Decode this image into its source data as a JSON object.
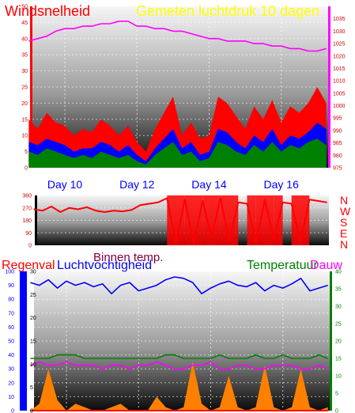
{
  "labels": {
    "wind_title": "Windsnelheid",
    "pressure_title": "Gemeten luchtdruk 10 dagen",
    "direction_letters": [
      "N",
      "W",
      "S",
      "E",
      "N"
    ],
    "rain_title": "Regenval",
    "humidity_title": "Luchtvochtigheid",
    "inside_temp_title": "Binnen temp.",
    "temperature_title": "Temperatuur",
    "dew_title": "Dauw",
    "day_labels": [
      "Day 10",
      "Day 12",
      "Day 14",
      "Day 16"
    ]
  },
  "colors": {
    "wind_gust": "#ff0000",
    "wind_avg": "#0000ff",
    "wind_low": "#008000",
    "pressure": "#ff00ff",
    "direction": "#ff0000",
    "rain": "#ff0000",
    "rain_axis": "#0000ff",
    "humidity": "#0000ff",
    "inside_temp": "#800040",
    "temperature": "#008000",
    "dew": "#ff00ff",
    "solar": "#ff8000",
    "axis_text": "#cc0000",
    "day_label": "#0000ff"
  },
  "chart_data": [
    {
      "type": "line",
      "title": "Windsnelheid / Gemeten luchtdruk 10 dagen",
      "x": [
        9,
        9.25,
        9.5,
        9.75,
        10,
        10.25,
        10.5,
        10.75,
        11,
        11.25,
        11.5,
        11.75,
        12,
        12.25,
        12.5,
        12.75,
        13,
        13.25,
        13.5,
        13.75,
        14,
        14.25,
        14.5,
        14.75,
        15,
        15.25,
        15.5,
        15.75,
        16,
        16.25,
        16.5,
        16.75,
        17,
        17.25
      ],
      "xticks": [
        10,
        12,
        14,
        16
      ],
      "xlim": [
        9.1,
        17.3
      ],
      "y_left_lim": [
        0,
        50
      ],
      "y_left_ticks": [
        0,
        5,
        10,
        15,
        20,
        25,
        30,
        35,
        40,
        45,
        50
      ],
      "y_right_lim": [
        975,
        1040
      ],
      "y_right_ticks": [
        975,
        980,
        985,
        990,
        995,
        1000,
        1005,
        1010,
        1015,
        1020,
        1025,
        1030,
        1035
      ],
      "series": [
        {
          "axis": "left",
          "values": [
            15,
            12,
            17,
            14,
            13,
            10,
            12,
            11,
            15,
            13,
            10,
            13,
            8,
            5,
            12,
            17,
            22,
            10,
            14,
            9,
            10,
            22,
            20,
            16,
            12,
            19,
            15,
            21,
            14,
            19,
            17,
            20,
            25,
            20
          ]
        },
        {
          "axis": "left",
          "values": [
            8,
            7,
            9,
            8,
            7,
            5,
            6,
            6,
            8,
            7,
            5,
            7,
            4,
            2,
            6,
            9,
            12,
            6,
            8,
            4,
            5,
            12,
            11,
            8,
            6,
            10,
            8,
            12,
            7,
            10,
            9,
            11,
            14,
            12
          ]
        },
        {
          "axis": "left",
          "values": [
            5,
            4,
            6,
            5,
            4,
            3,
            4,
            3,
            5,
            4,
            3,
            4,
            2,
            1,
            4,
            6,
            8,
            4,
            5,
            2,
            3,
            8,
            7,
            5,
            4,
            7,
            5,
            8,
            5,
            7,
            6,
            8,
            9,
            7
          ]
        },
        {
          "axis": "right",
          "values": [
            1026,
            1027,
            1028,
            1030,
            1031,
            1031,
            1032,
            1032,
            1033,
            1033,
            1034,
            1034,
            1032,
            1032,
            1031,
            1031,
            1030,
            1030,
            1029,
            1028,
            1027,
            1027,
            1026,
            1026,
            1026,
            1025,
            1025,
            1024,
            1024,
            1023,
            1023,
            1022,
            1022,
            1023
          ]
        }
      ]
    },
    {
      "type": "line",
      "title": "N W S E N",
      "x": [
        9,
        9.25,
        9.5,
        9.75,
        10,
        10.25,
        10.5,
        10.75,
        11,
        11.25,
        11.5,
        11.75,
        12,
        12.25,
        12.5,
        12.75,
        13,
        13.25,
        13.5,
        13.75,
        14,
        14.25,
        14.5,
        14.75,
        15,
        15.25,
        15.5,
        15.75,
        16,
        16.25,
        16.5,
        16.75,
        17,
        17.25
      ],
      "xlim": [
        9.1,
        17.3
      ],
      "ylim": [
        0,
        360
      ],
      "yticks": [
        0,
        90,
        180,
        270,
        360
      ],
      "series": [
        {
          "values": [
            260,
            250,
            280,
            240,
            270,
            260,
            275,
            250,
            240,
            250,
            245,
            255,
            290,
            300,
            310,
            340,
            20,
            330,
            10,
            320,
            60,
            340,
            30,
            310,
            300,
            20,
            330,
            40,
            310,
            300,
            20,
            330,
            320,
            310
          ]
        }
      ]
    },
    {
      "type": "line",
      "title": "Regenval / Luchtvochtigheid / Binnen temp. / Temperatuur / Dauw",
      "x": [
        9,
        9.25,
        9.5,
        9.75,
        10,
        10.25,
        10.5,
        10.75,
        11,
        11.25,
        11.5,
        11.75,
        12,
        12.25,
        12.5,
        12.75,
        13,
        13.25,
        13.5,
        13.75,
        14,
        14.25,
        14.5,
        14.75,
        15,
        15.25,
        15.5,
        15.75,
        16,
        16.25,
        16.5,
        16.75,
        17,
        17.25
      ],
      "xlim": [
        9.1,
        17.3
      ],
      "y_pct_lim": [
        0,
        100
      ],
      "y_pct_ticks": [
        0,
        10,
        20,
        30,
        40,
        50,
        60,
        70,
        80,
        90,
        100
      ],
      "y_rain_lim": [
        0,
        30
      ],
      "y_rain_ticks": [
        0,
        5,
        10,
        15,
        20,
        25,
        30
      ],
      "y_temp_lim": [
        0,
        40
      ],
      "y_temp_ticks": [
        0,
        5,
        10,
        15,
        20,
        25,
        30,
        35,
        40
      ],
      "series": [
        {
          "axis": "pct",
          "values": [
            92,
            90,
            94,
            88,
            93,
            90,
            92,
            89,
            91,
            84,
            90,
            92,
            86,
            88,
            90,
            94,
            96,
            95,
            92,
            84,
            88,
            91,
            93,
            90,
            89,
            92,
            86,
            90,
            88,
            91,
            95,
            86,
            88,
            90
          ]
        },
        {
          "axis": "temp",
          "values": [
            15,
            15,
            15,
            16,
            16,
            16,
            15,
            15,
            15,
            15,
            15,
            15,
            15,
            15,
            15,
            16,
            16,
            15,
            15,
            15,
            15,
            16,
            15,
            15,
            15,
            16,
            15,
            15,
            16,
            15,
            15,
            15,
            16,
            15
          ]
        },
        {
          "axis": "temp",
          "values": [
            13,
            14,
            13,
            13,
            14,
            13,
            13,
            13,
            12,
            13,
            13,
            12,
            13,
            13,
            14,
            13,
            12,
            12,
            13,
            13,
            14,
            12,
            12,
            13,
            13,
            12,
            12,
            13,
            13,
            13,
            12,
            12,
            13,
            12
          ]
        },
        {
          "axis": "temp",
          "values": [
            0,
            2,
            12,
            3,
            0,
            2,
            1,
            0,
            0,
            1,
            2,
            0,
            0,
            0,
            4,
            1,
            0,
            1,
            14,
            2,
            0,
            1,
            10,
            1,
            0,
            1,
            13,
            1,
            0,
            1,
            12,
            1,
            0,
            1
          ]
        },
        {
          "axis": "rain",
          "values": [
            0,
            0,
            0,
            0,
            0,
            0,
            0,
            0,
            0,
            0,
            0,
            0,
            0,
            0,
            0,
            0,
            0,
            0,
            0,
            0,
            0,
            0,
            0,
            0,
            0,
            0,
            0,
            0,
            0,
            0,
            0,
            0,
            0,
            0
          ]
        }
      ]
    }
  ]
}
